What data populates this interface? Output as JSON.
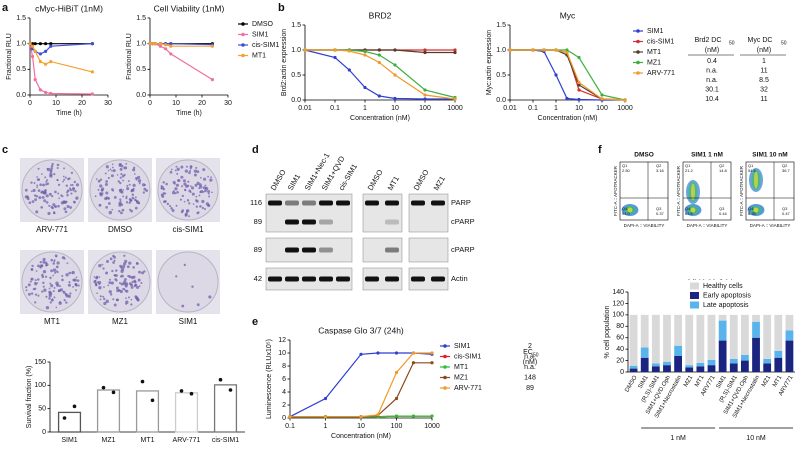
{
  "panel_labels": [
    "a",
    "b",
    "c",
    "d",
    "e",
    "f"
  ],
  "chart_data": [
    {
      "type": "line",
      "title": "cMyc-HiBiT (1nM)",
      "x_label": "Time (h)",
      "y_label": "Fractional RLU",
      "xlim": [
        0,
        30
      ],
      "xticks": [
        0,
        10,
        20,
        30
      ],
      "ylim": [
        0,
        1.5
      ],
      "yticks": [
        {
          "value": 0,
          "label": "0.0"
        },
        {
          "value": 0.5,
          "label": "0.5"
        },
        {
          "value": 1,
          "label": "1.0"
        },
        {
          "value": 1.5,
          "label": "1.5"
        }
      ],
      "x": [
        0,
        1,
        2,
        4,
        6,
        8,
        24
      ],
      "series": [
        {
          "name": "DMSO",
          "color": "#000000",
          "values": [
            1,
            1,
            1,
            1,
            1,
            1,
            1
          ]
        },
        {
          "name": "SIM1",
          "color": "#f06fa0",
          "values": [
            1,
            0.75,
            0.3,
            0.1,
            0.05,
            0.03,
            0.02
          ]
        },
        {
          "name": "cis-SIM1",
          "color": "#3f4fd8",
          "values": [
            1,
            0.9,
            0.85,
            0.8,
            0.85,
            0.95,
            1.0
          ]
        },
        {
          "name": "MT1",
          "color": "#f7a030",
          "values": [
            1,
            0.95,
            0.85,
            0.65,
            0.6,
            0.65,
            0.45
          ]
        }
      ]
    },
    {
      "type": "line",
      "title": "Cell Viability (1nM)",
      "x_label": "Time (h)",
      "y_label": "Fractional RLU",
      "xlim": [
        0,
        30
      ],
      "xticks": [
        0,
        10,
        20,
        30
      ],
      "ylim": [
        0,
        1.5
      ],
      "yticks": [
        {
          "value": 0,
          "label": "0.0"
        },
        {
          "value": 0.5,
          "label": "0.5"
        },
        {
          "value": 1,
          "label": "1.0"
        },
        {
          "value": 1.5,
          "label": "1.5"
        }
      ],
      "x": [
        0,
        1,
        2,
        4,
        6,
        8,
        24
      ],
      "legend": "right",
      "series": [
        {
          "name": "DMSO",
          "color": "#000000",
          "values": [
            1,
            1,
            1,
            1,
            1,
            1,
            1
          ]
        },
        {
          "name": "SIM1",
          "color": "#f06fa0",
          "values": [
            1,
            1,
            1,
            0.95,
            0.9,
            0.8,
            0.3
          ]
        },
        {
          "name": "cis-SIM1",
          "color": "#3f4fd8",
          "values": [
            1,
            1,
            1,
            1,
            1,
            1,
            0.98
          ]
        },
        {
          "name": "MT1",
          "color": "#f7a030",
          "values": [
            1,
            1,
            1,
            1,
            0.98,
            0.95,
            0.95
          ]
        }
      ]
    },
    {
      "type": "line",
      "title": "BRD2",
      "x_label": "Concentration (nM)",
      "y_label": "Brd2:actin expression",
      "xscale": "log",
      "xlim": [
        0.01,
        1000
      ],
      "xticks": [
        0.01,
        0.1,
        1,
        10,
        100,
        1000
      ],
      "ylim": [
        0,
        1.5
      ],
      "yticks": [
        {
          "value": 0,
          "label": "0.0"
        },
        {
          "value": 0.5,
          "label": "0.5"
        },
        {
          "value": 1,
          "label": "1.0"
        },
        {
          "value": 1.5,
          "label": "1.5"
        }
      ],
      "x": [
        0.01,
        0.1,
        0.3,
        1,
        3,
        10,
        100,
        1000
      ],
      "series": [
        {
          "name": "SIM1",
          "color": "#2f3fd0",
          "values": [
            1,
            0.85,
            0.6,
            0.25,
            0.08,
            0.03,
            0.02,
            0.02
          ]
        },
        {
          "name": "cis-SIM1",
          "color": "#d03030",
          "values": [
            1,
            1,
            1,
            1,
            1,
            1,
            1,
            1
          ]
        },
        {
          "name": "MT1",
          "color": "#5a3a2a",
          "values": [
            1,
            1,
            1,
            1,
            1,
            1,
            0.95,
            0.95
          ]
        },
        {
          "name": "MZ1",
          "color": "#3fae3f",
          "values": [
            1,
            1,
            1,
            0.97,
            0.9,
            0.7,
            0.2,
            0.05
          ]
        },
        {
          "name": "ARV-771",
          "color": "#f09a2a",
          "values": [
            1,
            1,
            0.98,
            0.9,
            0.75,
            0.5,
            0.1,
            0.02
          ]
        }
      ]
    },
    {
      "type": "line",
      "title": "Myc",
      "x_label": "Concentration (nM)",
      "y_label": "Myc:actin expression",
      "xscale": "log",
      "xlim": [
        0.01,
        1000
      ],
      "xticks": [
        0.01,
        0.1,
        1,
        10,
        100,
        1000
      ],
      "ylim": [
        0,
        1.5
      ],
      "yticks": [
        {
          "value": 0,
          "label": "0.0"
        },
        {
          "value": 0.5,
          "label": "0.5"
        },
        {
          "value": 1,
          "label": "1.0"
        },
        {
          "value": 1.5,
          "label": "1.5"
        }
      ],
      "x": [
        0.01,
        0.1,
        0.3,
        1,
        3,
        10,
        100,
        1000
      ],
      "legend": "right",
      "series": [
        {
          "name": "SIM1",
          "color": "#2f3fd0",
          "values": [
            1,
            1,
            0.97,
            0.5,
            0.03,
            0.01,
            0,
            0
          ]
        },
        {
          "name": "cis-SIM1",
          "color": "#d03030",
          "values": [
            1,
            1,
            1,
            1,
            0.95,
            0.2,
            0.02,
            0
          ]
        },
        {
          "name": "MT1",
          "color": "#5a3a2a",
          "values": [
            1,
            1,
            1,
            1,
            0.9,
            0.3,
            0.02,
            0
          ]
        },
        {
          "name": "MZ1",
          "color": "#3fae3f",
          "values": [
            1,
            1,
            1,
            1,
            1,
            0.85,
            0.1,
            0
          ]
        },
        {
          "name": "ARV-771",
          "color": "#f09a2a",
          "values": [
            1,
            1,
            1,
            1,
            0.95,
            0.35,
            0.02,
            0
          ]
        }
      ]
    },
    {
      "type": "bar",
      "y_label": "Survival fraction (%)",
      "categories": [
        "SIM1",
        "MZ1",
        "MT1",
        "ARV-771",
        "cis-SIM1"
      ],
      "values": [
        42,
        90,
        88,
        84,
        101
      ],
      "colors": [
        "#555555",
        "#999999",
        "#999999",
        "#cccccc",
        "#777777"
      ],
      "replicates": [
        [
          30,
          55
        ],
        [
          95,
          85
        ],
        [
          108,
          68
        ],
        [
          88,
          82
        ],
        [
          112,
          90
        ]
      ],
      "ylim": [
        0,
        150
      ],
      "yticks": [
        0,
        50,
        100,
        150
      ]
    },
    {
      "type": "line",
      "title": "Caspase Glo 3/7 (24h)",
      "x_label": "Concentration (nM)",
      "y_label": "Luminescence (RLUx10⁵)",
      "xscale": "log",
      "xlim": [
        0.1,
        1000
      ],
      "xticks": [
        0.1,
        1,
        10,
        100,
        1000
      ],
      "ylim": [
        0,
        12
      ],
      "yticks": [
        0,
        2,
        4,
        6,
        8,
        10,
        12
      ],
      "x": [
        0.1,
        1,
        10,
        30,
        100,
        300,
        1000
      ],
      "legend": "right",
      "series": [
        {
          "name": "SIM1",
          "color": "#2f3fd0",
          "values": [
            0.2,
            3,
            9.8,
            10,
            10,
            10,
            9.8
          ]
        },
        {
          "name": "cis-SIM1",
          "color": "#e02020",
          "values": [
            0.2,
            0.2,
            0.2,
            0.2,
            0.3,
            0.3,
            0.3
          ]
        },
        {
          "name": "MT1",
          "color": "#2fbf2f",
          "values": [
            0.2,
            0.2,
            0.2,
            0.2,
            0.3,
            0.3,
            0.3
          ]
        },
        {
          "name": "MZ1",
          "color": "#8a4a1a",
          "values": [
            0.2,
            0.2,
            0.2,
            0.4,
            3,
            8.5,
            8.5
          ]
        },
        {
          "name": "ARV-771",
          "color": "#f09a2a",
          "values": [
            0.2,
            0.2,
            0.2,
            0.5,
            7,
            10,
            10
          ]
        }
      ]
    },
    {
      "type": "stacked_bar",
      "title": "MV4;11 24 h",
      "y_label": "% cell population",
      "ylim": [
        0,
        140
      ],
      "yticks": [
        0,
        20,
        40,
        60,
        80,
        100,
        120,
        140
      ],
      "category_groups": [
        {
          "label": null,
          "categories": [
            "DMSO"
          ]
        },
        {
          "label": "1 nM",
          "categories": [
            "SIM1",
            "(R,S)-SIM1",
            "SIM1+QVD.Oph",
            "SIM1+Necrostatin",
            "MZ1",
            "MT1",
            "ARV771"
          ]
        },
        {
          "label": "10 nM",
          "categories": [
            "SIM1",
            "(R,S)-SIM1",
            "SIM1+QVD.Oph",
            "SIM1+Necrostatin",
            "MZ1",
            "MT1",
            "ARV771"
          ]
        }
      ],
      "series": [
        {
          "name": "Healthy cells",
          "color": "#d9d9d9",
          "values": [
            89,
            57,
            85,
            82,
            54,
            88,
            84,
            79,
            10,
            77,
            70,
            12,
            77,
            63,
            27
          ]
        },
        {
          "name": "Early apoptosis",
          "color": "#1a2580",
          "values": [
            6,
            25,
            10,
            12,
            28,
            8,
            10,
            12,
            55,
            15,
            20,
            60,
            15,
            25,
            55
          ]
        },
        {
          "name": "Late apoptosis",
          "color": "#5ab4ec",
          "values": [
            5,
            18,
            5,
            6,
            18,
            4,
            6,
            9,
            35,
            8,
            10,
            28,
            8,
            12,
            18
          ]
        }
      ]
    }
  ],
  "dc50_table": {
    "columns": [
      {
        "name": "Brd2 DC",
        "sub": "50",
        "unit": "(nM)"
      },
      {
        "name": "Myc DC",
        "sub": "50",
        "unit": "(nM)"
      }
    ],
    "rows": [
      [
        0.4,
        1
      ],
      [
        "n.a.",
        11
      ],
      [
        "n.a.",
        8.5
      ],
      [
        30.1,
        32
      ],
      [
        10.4,
        11
      ]
    ]
  },
  "ec50_table": {
    "header": {
      "name": "EC",
      "sub": "50",
      "unit": "(nM)"
    },
    "rows": [
      2,
      "n.a.",
      "n.a.",
      148,
      89
    ]
  },
  "colony_plates": {
    "labels": [
      "ARV-771",
      "DMSO",
      "cis-SIM1",
      "MT1",
      "MZ1",
      "SIM1"
    ]
  },
  "western_blot": {
    "lanes": [
      "DMSO",
      "SIM1",
      "SIM1+Nec-1",
      "SIM1+QVD",
      "cis-SIM1",
      "DMSO",
      "MT1",
      "DMSO",
      "MZ1"
    ],
    "markers": [
      116,
      89,
      89,
      42
    ],
    "bands": [
      "PARP",
      "cPARP",
      "cPARP",
      "Actin"
    ]
  },
  "flow_cytometry": {
    "y_label": "FITC-A :: APOTRACKER",
    "x_label": "DAPI-A :: VIABILITY",
    "plots": [
      {
        "title": "DMSO",
        "quadrants": [
          {
            "name": "Q1",
            "value": "2.50"
          },
          {
            "name": "Q2",
            "value": "3.16"
          },
          {
            "name": "Q3",
            "value": "0.37"
          },
          {
            "name": "Q4",
            "value": "94.0"
          }
        ]
      },
      {
        "title": "SIM1 1 nM",
        "quadrants": [
          {
            "name": "Q1",
            "value": "21.2"
          },
          {
            "name": "Q2",
            "value": "14.8"
          },
          {
            "name": "Q3",
            "value": "0.44"
          },
          {
            "name": "Q4",
            "value": "63.6"
          }
        ]
      },
      {
        "title": "SIM1 10 nM",
        "quadrants": [
          {
            "name": "Q1",
            "value": "54.5"
          },
          {
            "name": "Q2",
            "value": "36.7"
          },
          {
            "name": "Q3",
            "value": "0.47"
          },
          {
            "name": "Q4",
            "value": "8.35"
          }
        ]
      }
    ]
  }
}
